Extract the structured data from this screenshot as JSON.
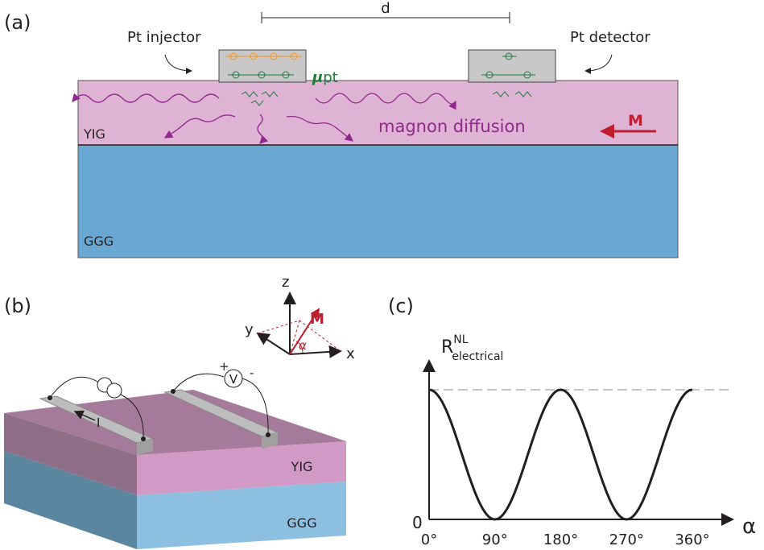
{
  "panel_a": {
    "label": "(a)",
    "distance": "d",
    "injector": "Pt injector",
    "detector": "Pt detector",
    "mu": "μ",
    "mu_sub": "pt",
    "diffusion": "magnon diffusion",
    "magnetization": "M",
    "layer_top": "YIG",
    "layer_bottom": "GGG"
  },
  "panel_b": {
    "label": "(b)",
    "axis_z": "z",
    "axis_y": "y",
    "axis_x": "x",
    "magnetization": "M",
    "angle": "α",
    "plus": "+",
    "minus": "-",
    "voltmeter": "V",
    "current": "I",
    "layer_top": "YIG",
    "layer_bottom": "GGG"
  },
  "panel_c": {
    "label": "(c)",
    "y_label": "R",
    "y_label_sup": "NL",
    "y_label_sub": "electrical",
    "y_origin": "0",
    "x_label": "α",
    "x_ticks": [
      "0°",
      "90°",
      "180°",
      "270°",
      "360°"
    ]
  }
}
